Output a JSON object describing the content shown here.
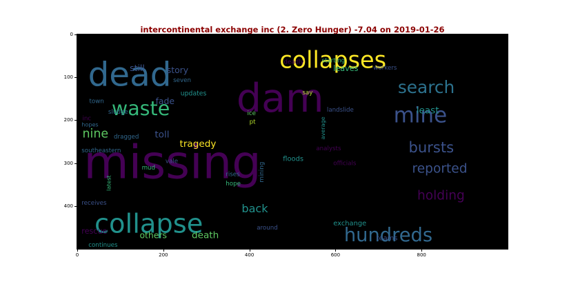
{
  "chart_data": {
    "type": "wordcloud",
    "title": "intercontinental exchange inc (2. Zero Hunger) -7.04 on 2019-01-26",
    "xlim": [
      0,
      1000
    ],
    "ylim": [
      500,
      0
    ],
    "xticks": [
      "0",
      "200",
      "400",
      "600",
      "800"
    ],
    "yticks": [
      "0",
      "100",
      "200",
      "300",
      "400"
    ],
    "background": "#000000",
    "words": [
      {
        "text": "missing",
        "x": 15,
        "y": 335,
        "size": 108,
        "color": "#440154",
        "rot": 0
      },
      {
        "text": "dam",
        "x": 370,
        "y": 180,
        "size": 92,
        "color": "#440154",
        "rot": 0
      },
      {
        "text": "dead",
        "x": 25,
        "y": 120,
        "size": 78,
        "color": "#31688e",
        "rot": 0
      },
      {
        "text": "collapses",
        "x": 470,
        "y": 78,
        "size": 54,
        "color": "#fde725",
        "rot": 0
      },
      {
        "text": "collapse",
        "x": 40,
        "y": 462,
        "size": 62,
        "color": "#21918c",
        "rot": 0
      },
      {
        "text": "mine",
        "x": 735,
        "y": 205,
        "size": 50,
        "color": "#3b528b",
        "rot": 0
      },
      {
        "text": "search",
        "x": 745,
        "y": 137,
        "size": 40,
        "color": "#2c728e",
        "rot": 0
      },
      {
        "text": "waste",
        "x": 80,
        "y": 188,
        "size": 46,
        "color": "#35b779",
        "rot": 0
      },
      {
        "text": "hundreds",
        "x": 620,
        "y": 482,
        "size": 44,
        "color": "#31688e",
        "rot": 0
      },
      {
        "text": "bursts",
        "x": 770,
        "y": 275,
        "size": 34,
        "color": "#3b528b",
        "rot": 0
      },
      {
        "text": "reported",
        "x": 778,
        "y": 322,
        "size": 30,
        "color": "#3b528b",
        "rot": 0
      },
      {
        "text": "holding",
        "x": 790,
        "y": 385,
        "size": 30,
        "color": "#440154",
        "rot": 0
      },
      {
        "text": "back",
        "x": 382,
        "y": 415,
        "size": 26,
        "color": "#21918c",
        "rot": 0
      },
      {
        "text": "nine",
        "x": 12,
        "y": 240,
        "size": 28,
        "color": "#5ec962",
        "rot": 0
      },
      {
        "text": "least",
        "x": 788,
        "y": 184,
        "size": 22,
        "color": "#21918c",
        "rot": 0
      },
      {
        "text": "toll",
        "x": 180,
        "y": 240,
        "size": 22,
        "color": "#3b528b",
        "rot": 0
      },
      {
        "text": "tragedy",
        "x": 238,
        "y": 262,
        "size": 22,
        "color": "#fde725",
        "rot": 0
      },
      {
        "text": "death",
        "x": 266,
        "y": 475,
        "size": 22,
        "color": "#5ec962",
        "rot": 0
      },
      {
        "text": "fade",
        "x": 182,
        "y": 162,
        "size": 20,
        "color": "#3b528b",
        "rot": 0
      },
      {
        "text": "story",
        "x": 208,
        "y": 90,
        "size": 20,
        "color": "#3b528b",
        "rot": 0
      },
      {
        "text": "still",
        "x": 122,
        "y": 85,
        "size": 20,
        "color": "#3b528b",
        "rot": 0
      },
      {
        "text": "leaves",
        "x": 595,
        "y": 85,
        "size": 18,
        "color": "#35b779",
        "rot": 0
      },
      {
        "text": "others",
        "x": 145,
        "y": 475,
        "size": 20,
        "color": "#5ec962",
        "rot": 0
      },
      {
        "text": "rescue",
        "x": 10,
        "y": 465,
        "size": 18,
        "color": "#440154",
        "rot": 0
      },
      {
        "text": "exchange",
        "x": 595,
        "y": 445,
        "size": 16,
        "color": "#21918c",
        "rot": 0
      },
      {
        "text": "teams",
        "x": 695,
        "y": 480,
        "size": 16,
        "color": "#3b528b",
        "rot": 0
      },
      {
        "text": "floods",
        "x": 478,
        "y": 295,
        "size": 16,
        "color": "#21918c",
        "rot": 0
      },
      {
        "text": "updates",
        "x": 240,
        "y": 142,
        "size": 15,
        "color": "#21918c",
        "rot": 0
      },
      {
        "text": "workers",
        "x": 688,
        "y": 82,
        "size": 14,
        "color": "#3b528b",
        "rot": 0
      },
      {
        "text": "starting",
        "x": 568,
        "y": 65,
        "size": 14,
        "color": "#35b779",
        "rot": 0
      },
      {
        "text": "deadly",
        "x": 480,
        "y": 68,
        "size": 14,
        "color": "#440154",
        "rot": 0
      },
      {
        "text": "seven",
        "x": 223,
        "y": 111,
        "size": 14,
        "color": "#31688e",
        "rot": 0
      },
      {
        "text": "say",
        "x": 523,
        "y": 140,
        "size": 14,
        "color": "#b5de2b",
        "rot": 0
      },
      {
        "text": "town",
        "x": 28,
        "y": 160,
        "size": 14,
        "color": "#31688e",
        "rot": 0
      },
      {
        "text": "sludge",
        "x": 72,
        "y": 185,
        "size": 14,
        "color": "#31688e",
        "rot": 0
      },
      {
        "text": "inc",
        "x": 12,
        "y": 200,
        "size": 14,
        "color": "#440154",
        "rot": 0
      },
      {
        "text": "hopes",
        "x": 10,
        "y": 215,
        "size": 13,
        "color": "#31688e",
        "rot": 0
      },
      {
        "text": "ice",
        "x": 395,
        "y": 188,
        "size": 14,
        "color": "#5ec962",
        "rot": 0
      },
      {
        "text": "pt",
        "x": 400,
        "y": 208,
        "size": 14,
        "color": "#b5de2b",
        "rot": 0
      },
      {
        "text": "landslide",
        "x": 580,
        "y": 180,
        "size": 14,
        "color": "#3b528b",
        "rot": 0
      },
      {
        "text": "average",
        "x": 575,
        "y": 245,
        "size": 13,
        "color": "#21918c",
        "rot": -90
      },
      {
        "text": "analysts",
        "x": 555,
        "y": 270,
        "size": 14,
        "color": "#440154",
        "rot": 0
      },
      {
        "text": "officials",
        "x": 595,
        "y": 305,
        "size": 14,
        "color": "#440154",
        "rot": 0
      },
      {
        "text": "dragged",
        "x": 85,
        "y": 243,
        "size": 14,
        "color": "#31688e",
        "rot": 0
      },
      {
        "text": "southeastern",
        "x": 10,
        "y": 275,
        "size": 14,
        "color": "#31688e",
        "rot": 0
      },
      {
        "text": "vale",
        "x": 205,
        "y": 300,
        "size": 14,
        "color": "#3b528b",
        "rot": 0
      },
      {
        "text": "mud",
        "x": 150,
        "y": 315,
        "size": 14,
        "color": "#35b779",
        "rot": 0
      },
      {
        "text": "mining",
        "x": 433,
        "y": 345,
        "size": 14,
        "color": "#31688e",
        "rot": -90
      },
      {
        "text": "rises",
        "x": 345,
        "y": 330,
        "size": 14,
        "color": "#31688e",
        "rot": 0
      },
      {
        "text": "hope",
        "x": 345,
        "y": 352,
        "size": 14,
        "color": "#35b779",
        "rot": 0
      },
      {
        "text": "latest",
        "x": 78,
        "y": 365,
        "size": 13,
        "color": "#35b779",
        "rot": -90
      },
      {
        "text": "receives",
        "x": 10,
        "y": 397,
        "size": 14,
        "color": "#3b528b",
        "rot": 0
      },
      {
        "text": "around",
        "x": 417,
        "y": 455,
        "size": 14,
        "color": "#3b528b",
        "rot": 0
      },
      {
        "text": "continues",
        "x": 26,
        "y": 495,
        "size": 14,
        "color": "#21918c",
        "rot": 0
      }
    ]
  }
}
